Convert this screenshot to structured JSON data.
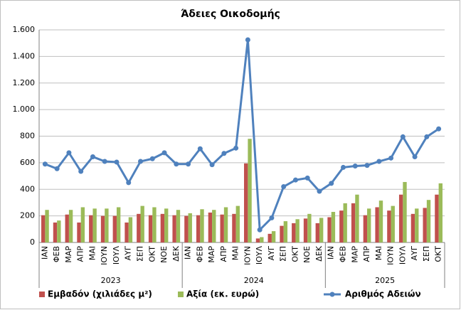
{
  "chart_data": {
    "type": "bar-line",
    "title": "Άδειες Οικοδομής",
    "categories": [
      "ΙΑΝ",
      "ΦΕΒ",
      "ΜΑΡ",
      "ΑΠΡ",
      "ΜΑΙ",
      "ΙΟΥΝ",
      "ΙΟΥΛ",
      "ΑΥΓ",
      "ΣΕΠ",
      "ΟΚΤ",
      "ΝΟΕ",
      "ΔΕΚ",
      "ΙΑΝ",
      "ΦΕΒ",
      "ΜΑΡ",
      "ΑΠΡ",
      "ΜΑΙ",
      "ΙΟΥΝ",
      "ΙΟΥΛ",
      "ΑΥΓ",
      "ΣΕΠ",
      "ΟΚΤ",
      "ΝΟΕ",
      "ΔΕΚ",
      "ΙΑΝ",
      "ΦΕΒ",
      "ΜΑΡ",
      "ΑΠΡ",
      "ΜΑΙ",
      "ΙΟΥΝ",
      "ΙΟΥΛ",
      "ΑΥΓ",
      "ΣΕΠ",
      "ΟΚΤ"
    ],
    "groups": [
      {
        "label": "2023",
        "span": 12
      },
      {
        "label": "2024",
        "span": 12
      },
      {
        "label": "2025",
        "span": 10
      }
    ],
    "series": [
      {
        "name": "Εμβαδόν (χιλιάδες μ²)",
        "type": "bar",
        "color": "#c0504d",
        "values": [
          205,
          150,
          210,
          150,
          205,
          200,
          200,
          150,
          215,
          205,
          215,
          205,
          200,
          205,
          225,
          210,
          215,
          595,
          30,
          65,
          125,
          145,
          180,
          145,
          190,
          240,
          295,
          205,
          265,
          240,
          360,
          215,
          260,
          360
        ]
      },
      {
        "name": "Αξία (εκ. ευρώ)",
        "type": "bar",
        "color": "#9bbb59",
        "values": [
          245,
          165,
          245,
          265,
          255,
          255,
          265,
          190,
          275,
          265,
          255,
          245,
          220,
          250,
          245,
          265,
          275,
          780,
          40,
          85,
          160,
          175,
          215,
          185,
          230,
          295,
          360,
          255,
          315,
          275,
          455,
          255,
          320,
          445
        ]
      },
      {
        "name": "Αριθμός Αδειών",
        "type": "line",
        "color": "#4f81bd",
        "values": [
          590,
          555,
          675,
          535,
          645,
          610,
          605,
          450,
          610,
          630,
          675,
          590,
          590,
          705,
          585,
          670,
          710,
          1525,
          95,
          185,
          420,
          470,
          485,
          385,
          445,
          565,
          575,
          580,
          610,
          635,
          795,
          645,
          795,
          855
        ]
      }
    ],
    "ylim": [
      0,
      1600
    ],
    "yticks": [
      0,
      200,
      400,
      600,
      800,
      {
        "value": 1000,
        "label": "1.000"
      },
      {
        "value": 1200,
        "label": "1.200"
      },
      {
        "value": 1400,
        "label": "1.400"
      },
      {
        "value": 1600,
        "label": "1.600"
      }
    ],
    "grid": true,
    "legend": "bottom"
  }
}
